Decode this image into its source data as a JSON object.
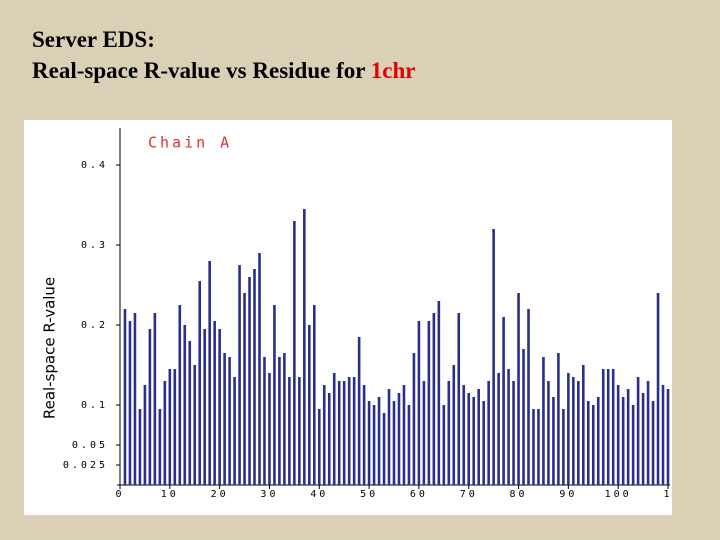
{
  "slide": {
    "title_line1": "Server EDS:",
    "title_line2": "Real-space R-value vs Residue for ",
    "title_highlight": "1chr"
  },
  "chart_data": {
    "type": "bar",
    "annotation": "Chain A",
    "y_label": "Real-space R-value",
    "color": "#2b2f8c",
    "x": [
      1,
      2,
      3,
      4,
      5,
      6,
      7,
      8,
      9,
      10,
      11,
      12,
      13,
      14,
      15,
      16,
      17,
      18,
      19,
      20,
      21,
      22,
      23,
      24,
      25,
      26,
      27,
      28,
      29,
      30,
      31,
      32,
      33,
      34,
      35,
      36,
      37,
      38,
      39,
      40,
      41,
      42,
      43,
      44,
      45,
      46,
      47,
      48,
      49,
      50,
      51,
      52,
      53,
      54,
      55,
      56,
      57,
      58,
      59,
      60,
      61,
      62,
      63,
      64,
      65,
      66,
      67,
      68,
      69,
      70,
      71,
      72,
      73,
      74,
      75,
      76,
      77,
      78,
      79,
      80,
      81,
      82,
      83,
      84,
      85,
      86,
      87,
      88,
      89,
      90,
      91,
      92,
      93,
      94,
      95,
      96,
      97,
      98,
      99,
      100,
      101,
      102,
      103,
      104,
      105,
      106,
      107,
      108,
      109,
      110
    ],
    "values": [
      0.22,
      0.205,
      0.215,
      0.095,
      0.125,
      0.195,
      0.215,
      0.095,
      0.13,
      0.145,
      0.145,
      0.225,
      0.2,
      0.18,
      0.15,
      0.255,
      0.195,
      0.28,
      0.205,
      0.195,
      0.165,
      0.16,
      0.135,
      0.275,
      0.24,
      0.26,
      0.27,
      0.29,
      0.16,
      0.14,
      0.225,
      0.16,
      0.165,
      0.135,
      0.33,
      0.135,
      0.345,
      0.2,
      0.225,
      0.095,
      0.125,
      0.115,
      0.14,
      0.13,
      0.13,
      0.135,
      0.135,
      0.185,
      0.125,
      0.105,
      0.1,
      0.11,
      0.09,
      0.12,
      0.105,
      0.115,
      0.125,
      0.1,
      0.165,
      0.205,
      0.13,
      0.205,
      0.215,
      0.23,
      0.1,
      0.13,
      0.15,
      0.215,
      0.125,
      0.115,
      0.11,
      0.12,
      0.105,
      0.13,
      0.32,
      0.14,
      0.21,
      0.145,
      0.13,
      0.24,
      0.17,
      0.22,
      0.095,
      0.095,
      0.16,
      0.13,
      0.11,
      0.165,
      0.095,
      0.14,
      0.135,
      0.13,
      0.15,
      0.105,
      0.1,
      0.11,
      0.145,
      0.145,
      0.145,
      0.125,
      0.11,
      0.12,
      0.1,
      0.135,
      0.115,
      0.13,
      0.105,
      0.24,
      0.125,
      0.12
    ],
    "xlim": [
      0,
      110
    ],
    "xticks": [
      0,
      10,
      20,
      30,
      40,
      50,
      60,
      70,
      80,
      90,
      100,
      {
        "value": 110,
        "label": "1"
      }
    ],
    "ylim": [
      0,
      0.44
    ],
    "yticks": [
      0.025,
      0.05,
      0.1,
      0.2,
      0.3,
      0.4
    ],
    "grid": false
  }
}
